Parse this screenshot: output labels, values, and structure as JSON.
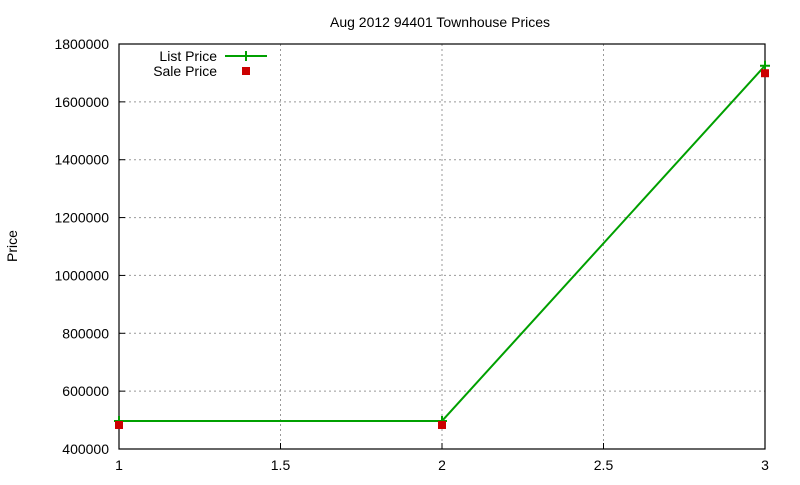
{
  "chart_data": {
    "type": "line",
    "title": "Aug 2012 94401 Townhouse Prices",
    "xlabel": "",
    "ylabel": "Price",
    "xlim": [
      1,
      3
    ],
    "ylim": [
      400000,
      1800000
    ],
    "x_ticks": [
      "1",
      "1.5",
      "2",
      "2.5",
      "3"
    ],
    "y_ticks": [
      "400000",
      "600000",
      "800000",
      "1000000",
      "1200000",
      "1400000",
      "1600000",
      "1800000"
    ],
    "grid": true,
    "legend_position": "top-left",
    "x": [
      1,
      2,
      3
    ],
    "series": [
      {
        "name": "List Price",
        "style": "linespoints",
        "color": "#00a000",
        "values": [
          497000,
          497000,
          1725000
        ]
      },
      {
        "name": "Sale Price",
        "style": "points",
        "color": "#cc0000",
        "values": [
          483000,
          483000,
          1699000
        ]
      }
    ]
  }
}
